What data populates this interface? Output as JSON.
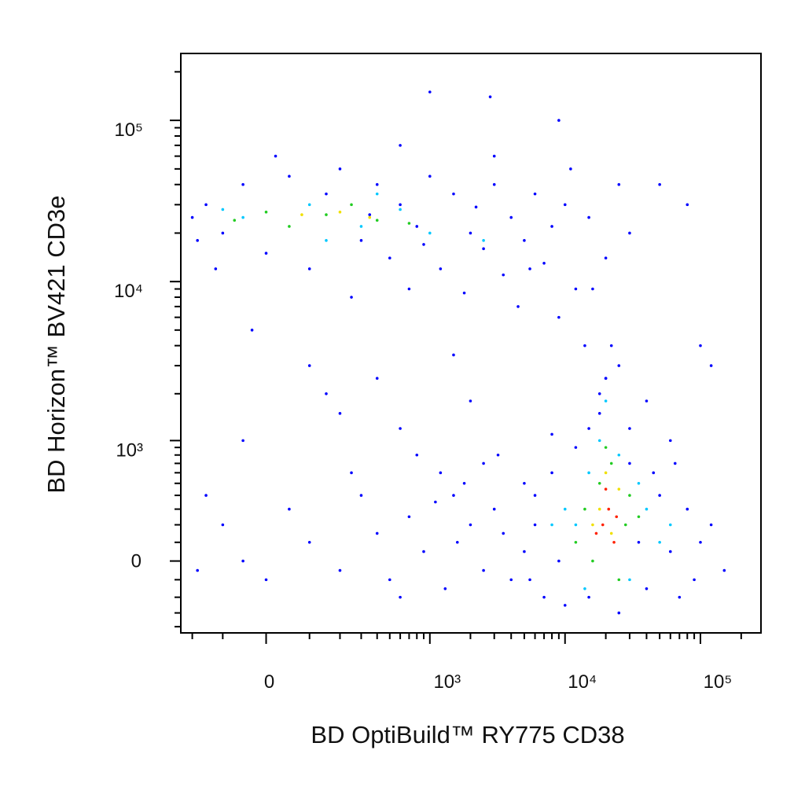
{
  "chart_data": {
    "type": "scatter",
    "x_label": "BD OptiBuild™ RY775 CD38",
    "y_label": "BD Horizon™ BV421 CD3e",
    "xscale": "biexponential",
    "yscale": "biexponential",
    "xlim": [
      -250,
      280000
    ],
    "ylim": [
      -450,
      260000
    ],
    "xticks": [
      {
        "value": 0,
        "label": "0"
      },
      {
        "value": 1000,
        "label": "10³"
      },
      {
        "value": 10000,
        "label": "10⁴"
      },
      {
        "value": 100000,
        "label": "10⁵"
      }
    ],
    "yticks": [
      {
        "value": 0,
        "label": "0"
      },
      {
        "value": 1000,
        "label": "10³"
      },
      {
        "value": 10000,
        "label": "10⁴"
      },
      {
        "value": 100000,
        "label": "10⁵"
      }
    ],
    "xminorticks": [
      -200,
      -100,
      100,
      200,
      300,
      400,
      500,
      600,
      700,
      800,
      900,
      2000,
      3000,
      4000,
      5000,
      6000,
      7000,
      8000,
      9000,
      20000,
      30000,
      40000,
      50000,
      60000,
      70000,
      80000,
      90000,
      200000
    ],
    "yminorticks": [
      -400,
      -300,
      -200,
      -100,
      100,
      200,
      300,
      400,
      500,
      600,
      700,
      800,
      900,
      2000,
      3000,
      4000,
      5000,
      6000,
      7000,
      8000,
      9000,
      20000,
      30000,
      40000,
      50000,
      60000,
      70000,
      80000,
      90000,
      200000
    ],
    "series": [
      {
        "color": "#0000ff",
        "x": [
          -150,
          -100,
          -50,
          0,
          50,
          100,
          150,
          200,
          300,
          400,
          500,
          600,
          800,
          1000,
          1200,
          1500,
          2000,
          2500,
          3000,
          3500,
          4000,
          5000,
          6000,
          7000,
          8000,
          10000,
          12000,
          15000,
          20000,
          25000,
          30000,
          -200,
          -180,
          20,
          250,
          700,
          1800,
          4500,
          9000,
          14000,
          20000,
          11000,
          600,
          3000,
          9000,
          1000,
          2800,
          50000,
          80000,
          -120,
          350,
          900,
          2200,
          5500,
          16000,
          100,
          400,
          1500,
          2000,
          -50,
          200,
          600,
          800,
          1200,
          1500,
          2000,
          2500,
          -100,
          -50,
          0,
          50,
          100,
          200,
          300,
          400,
          500,
          700,
          900,
          1100,
          1300,
          1600,
          1800,
          2500,
          3000,
          3500,
          4000,
          5000,
          6000,
          -180,
          -150,
          250,
          600,
          3200,
          150,
          -30,
          5000,
          6000,
          7000,
          8000,
          9000,
          10000,
          12000,
          15000,
          18000,
          20000,
          22000,
          25000,
          30000,
          35000,
          40000,
          50000,
          60000,
          70000,
          80000,
          100000,
          120000,
          150000,
          25000,
          18000,
          30000,
          40000,
          60000,
          100000,
          120000,
          8000,
          45000,
          90000,
          5500,
          65000,
          15000
        ],
        "values": [
          30000,
          20000,
          40000,
          15000,
          45000,
          12000,
          35000,
          50000,
          18000,
          40000,
          14000,
          30000,
          22000,
          45000,
          12000,
          35000,
          20000,
          16000,
          40000,
          11000,
          25000,
          18000,
          35000,
          13000,
          22000,
          30000,
          9000,
          25000,
          14000,
          40000,
          20000,
          25000,
          18000,
          60000,
          8000,
          9000,
          8500,
          7000,
          6000,
          4000,
          2500,
          50000,
          70000,
          60000,
          100000,
          150000,
          140000,
          40000,
          30000,
          12000,
          26000,
          17000,
          29000,
          12000,
          9000,
          3000,
          2500,
          3500,
          1800,
          1000,
          1500,
          1200,
          800,
          600,
          400,
          200,
          700,
          200,
          0,
          -100,
          300,
          100,
          -50,
          400,
          150,
          -100,
          250,
          50,
          350,
          -150,
          100,
          500,
          -50,
          300,
          150,
          -100,
          500,
          200,
          -50,
          400,
          600,
          -200,
          800,
          2000,
          5000,
          50,
          400,
          -200,
          600,
          0,
          -250,
          900,
          -200,
          1500,
          2500,
          4000,
          -300,
          700,
          100,
          -150,
          400,
          50,
          -200,
          300,
          100,
          200,
          -50,
          3000,
          2000,
          1200,
          1800,
          1000,
          4000,
          3000,
          1100,
          600,
          -100,
          -100,
          700,
          1200
        ]
      },
      {
        "color": "#00c8ff",
        "x": [
          -50,
          100,
          300,
          600,
          1000,
          2500,
          150,
          400,
          -100,
          12000,
          15000,
          25000,
          30000,
          40000,
          18000,
          10000,
          20000,
          50000,
          8000,
          35000,
          60000,
          14000
        ],
        "values": [
          25000,
          30000,
          22000,
          28000,
          20000,
          18000,
          18000,
          35000,
          28000,
          200,
          600,
          800,
          -100,
          300,
          1000,
          300,
          1800,
          100,
          200,
          500,
          200,
          -150
        ]
      },
      {
        "color": "#22cc22",
        "x": [
          0,
          50,
          150,
          250,
          400,
          700,
          -70,
          14000,
          18000,
          22000,
          28000,
          16000,
          25000,
          20000,
          30000,
          12000,
          35000
        ],
        "values": [
          27000,
          22000,
          26000,
          30000,
          24000,
          23000,
          24000,
          300,
          500,
          700,
          200,
          0,
          -100,
          900,
          400,
          100,
          250
        ]
      },
      {
        "color": "#f0e000",
        "x": [
          80,
          200,
          350,
          18000,
          22000,
          25000,
          16000,
          20000
        ],
        "values": [
          26000,
          27000,
          25000,
          300,
          150,
          450,
          200,
          600
        ]
      },
      {
        "color": "#ff2000",
        "x": [
          19000,
          21000,
          23000,
          20000,
          24000,
          17000
        ],
        "values": [
          200,
          300,
          100,
          450,
          250,
          150
        ]
      }
    ]
  }
}
